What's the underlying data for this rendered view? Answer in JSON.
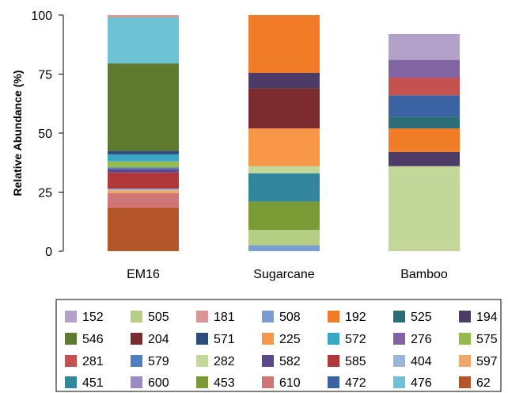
{
  "chart_data": {
    "type": "bar",
    "stacked": true,
    "title": "",
    "xlabel": "",
    "ylabel": "Relative Abundance (%)",
    "ylim": [
      0,
      100
    ],
    "yticks": [
      "0",
      "25",
      "50",
      "75",
      "100"
    ],
    "categories": [
      "EM16",
      "Sugarcane",
      "Bamboo"
    ],
    "grid": false,
    "legend_position": "bottom",
    "legend_order": [
      "152",
      "505",
      "181",
      "508",
      "192",
      "525",
      "194",
      "546",
      "204",
      "571",
      "225",
      "572",
      "276",
      "575",
      "281",
      "579",
      "282",
      "582",
      "585",
      "404",
      "597",
      "451",
      "600",
      "453",
      "610",
      "472",
      "476",
      "62"
    ],
    "series": [
      {
        "name": "62",
        "color": "#b5552a",
        "values": [
          18.5,
          0,
          0
        ]
      },
      {
        "name": "610",
        "color": "#d07575",
        "values": [
          6.0,
          0,
          0
        ]
      },
      {
        "name": "597",
        "color": "#f0a868",
        "values": [
          1.3,
          0,
          0
        ]
      },
      {
        "name": "404",
        "color": "#9ab6d9",
        "values": [
          0.7,
          0,
          0
        ]
      },
      {
        "name": "585",
        "color": "#b03838",
        "values": [
          6.8,
          0,
          0
        ]
      },
      {
        "name": "582",
        "color": "#5a4a8c",
        "values": [
          1.5,
          0,
          0
        ]
      },
      {
        "name": "579",
        "color": "#4f7fc0",
        "values": [
          0.7,
          0,
          0
        ]
      },
      {
        "name": "575",
        "color": "#95ba4e",
        "values": [
          2.5,
          0,
          0
        ]
      },
      {
        "name": "572",
        "color": "#3aa6c6",
        "values": [
          3.0,
          0,
          0
        ]
      },
      {
        "name": "571",
        "color": "#2b4b7c",
        "values": [
          1.5,
          0,
          0
        ]
      },
      {
        "name": "546",
        "color": "#5d7a2e",
        "values": [
          37.0,
          0,
          0
        ]
      },
      {
        "name": "476",
        "color": "#6cc2d4",
        "values": [
          19.5,
          0,
          0
        ]
      },
      {
        "name": "181",
        "color": "#d99594",
        "values": [
          1.0,
          0,
          0
        ]
      },
      {
        "name": "508",
        "color": "#7a9ed1",
        "values": [
          0,
          2.5,
          0
        ]
      },
      {
        "name": "505",
        "color": "#b4cf84",
        "values": [
          0,
          6.5,
          0
        ]
      },
      {
        "name": "453",
        "color": "#7a9a35",
        "values": [
          0,
          12.0,
          0
        ]
      },
      {
        "name": "451",
        "color": "#31859c",
        "values": [
          0,
          12.0,
          0
        ]
      },
      {
        "name": "282",
        "color": "#c4d79b",
        "values": [
          0,
          3.0,
          36.0
        ]
      },
      {
        "name": "225",
        "color": "#f79646",
        "values": [
          0,
          16.0,
          0
        ]
      },
      {
        "name": "204",
        "color": "#7b2a2e",
        "values": [
          0,
          17.0,
          0
        ]
      },
      {
        "name": "194",
        "color": "#4b3b66",
        "values": [
          0,
          6.5,
          6.0
        ]
      },
      {
        "name": "192",
        "color": "#f07c28",
        "values": [
          0,
          24.5,
          10.0
        ]
      },
      {
        "name": "525",
        "color": "#2b6e78",
        "values": [
          0,
          0,
          5.0
        ]
      },
      {
        "name": "472",
        "color": "#3a62a0",
        "values": [
          0,
          0,
          9.0
        ]
      },
      {
        "name": "281",
        "color": "#c55050",
        "values": [
          0,
          0,
          7.5
        ]
      },
      {
        "name": "276",
        "color": "#8064a2",
        "values": [
          0,
          0,
          7.5
        ]
      },
      {
        "name": "600",
        "color": "#9b8ac4",
        "values": [
          0,
          0,
          0
        ]
      },
      {
        "name": "152",
        "color": "#b3a2c7",
        "values": [
          0,
          0,
          11.0
        ]
      }
    ]
  }
}
